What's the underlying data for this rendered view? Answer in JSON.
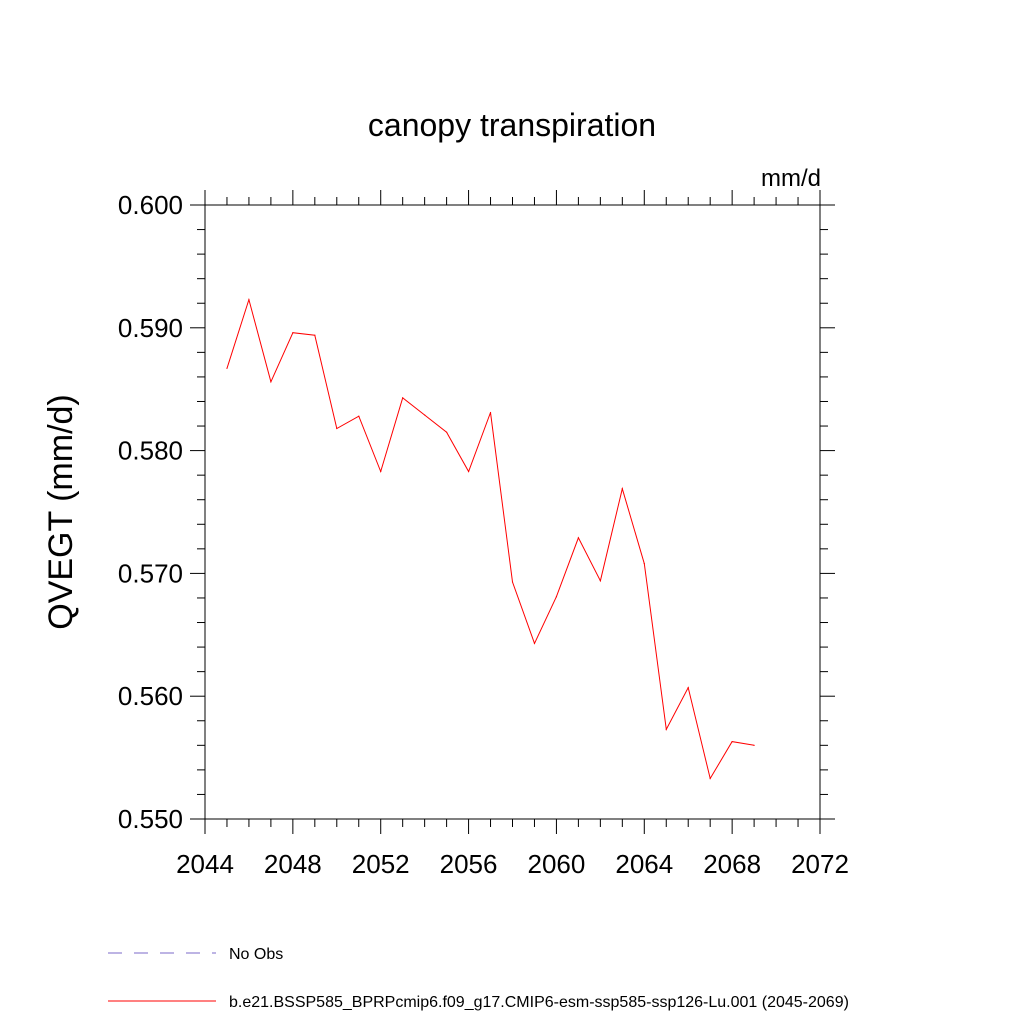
{
  "chart_data": {
    "type": "line",
    "title": "canopy transpiration",
    "units_label": "mm/d",
    "ylabel": "QVEGT  (mm/d)",
    "xlabel": "",
    "xlim": [
      2044,
      2072
    ],
    "ylim": [
      0.55,
      0.6
    ],
    "x_ticks": [
      2044,
      2048,
      2052,
      2056,
      2060,
      2064,
      2068,
      2072
    ],
    "x_tick_labels": [
      "2044",
      "2048",
      "2052",
      "2056",
      "2060",
      "2064",
      "2068",
      "2072"
    ],
    "y_ticks": [
      0.55,
      0.56,
      0.57,
      0.58,
      0.59,
      0.6
    ],
    "y_tick_labels": [
      "0.550",
      "0.560",
      "0.570",
      "0.580",
      "0.590",
      "0.600"
    ],
    "grid": false,
    "legend_position": "bottom-left",
    "legend": [
      {
        "label": "No Obs",
        "color": "#7b68c8",
        "style": "dashed"
      },
      {
        "label": "b.e21.BSSP585_BPRPcmip6.f09_g17.CMIP6-esm-ssp585-ssp126-Lu.001 (2045-2069)",
        "color": "#ff0000",
        "style": "solid"
      }
    ],
    "series": [
      {
        "name": "b.e21.BSSP585_BPRPcmip6.f09_g17.CMIP6-esm-ssp585-ssp126-Lu.001 (2045-2069)",
        "color": "#ff0000",
        "x": [
          2045,
          2046,
          2047,
          2048,
          2049,
          2050,
          2051,
          2052,
          2053,
          2054,
          2055,
          2056,
          2057,
          2058,
          2059,
          2060,
          2061,
          2062,
          2063,
          2064,
          2065,
          2066,
          2067,
          2068,
          2069
        ],
        "values": [
          0.5867,
          0.5923,
          0.5856,
          0.5896,
          0.5894,
          0.5818,
          0.5828,
          0.5783,
          0.5843,
          0.5829,
          0.5815,
          0.5783,
          0.5831,
          0.5693,
          0.5643,
          0.5681,
          0.5729,
          0.5694,
          0.5769,
          0.5708,
          0.5573,
          0.5607,
          0.5533,
          0.5563,
          0.556
        ]
      }
    ]
  }
}
